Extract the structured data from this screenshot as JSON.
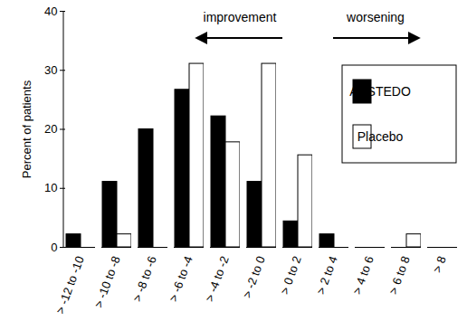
{
  "chart_data": {
    "type": "bar",
    "y_label": "Percent of patients",
    "categories": [
      "> -12 to -10",
      "> -10 to -8",
      "> -8 to -6",
      "> -6 to -4",
      "> -4 to -2",
      "> -2 to 0",
      "> 0 to 2",
      "> 2 to 4",
      "> 4 to 6",
      "> 6 to 8",
      "> 8"
    ],
    "series": [
      {
        "name": "AUSTEDO",
        "color": "#000000",
        "values": [
          2.2,
          11.1,
          20,
          26.7,
          22.2,
          11.1,
          4.4,
          2.2,
          0,
          0,
          0
        ]
      },
      {
        "name": "Placebo",
        "color": "#ffffff",
        "values": [
          0,
          2.2,
          0,
          31.1,
          17.8,
          31.1,
          15.6,
          0,
          0,
          2.2,
          0
        ]
      }
    ],
    "annotations": [
      "improvement",
      "worsening"
    ],
    "ylim": [
      0,
      40
    ],
    "yticks": [
      0,
      10,
      20,
      30,
      40
    ],
    "legend": "top-right",
    "grid": false
  }
}
